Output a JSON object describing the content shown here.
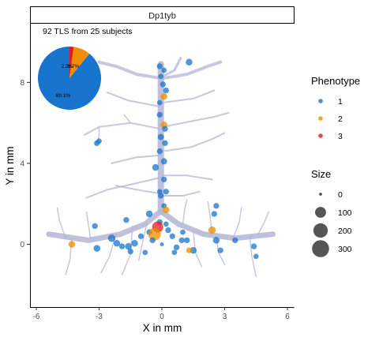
{
  "chart_data": {
    "type": "scatter",
    "facet_label": "Dp1tyb",
    "annotation": "92 TLS from 25 subjects",
    "xlabel": "X in mm",
    "ylabel": "Y in mm",
    "xlim": [
      -6.3,
      6.3
    ],
    "ylim": [
      -3.1,
      10.9
    ],
    "xticks": [
      -6,
      -3,
      0,
      3,
      6
    ],
    "yticks": [
      0,
      4,
      8
    ],
    "grid": false,
    "legend_position": "right",
    "phenotype_legend": {
      "title": "Phenotype",
      "items": [
        {
          "label": "1",
          "color": "#1874CD"
        },
        {
          "label": "2",
          "color": "#EE8E00"
        },
        {
          "label": "3",
          "color": "#E41A1C"
        }
      ]
    },
    "size_legend": {
      "title": "Size",
      "items": [
        {
          "label": "0",
          "value": 0
        },
        {
          "label": "100",
          "value": 100
        },
        {
          "label": "200",
          "value": 200
        },
        {
          "label": "300",
          "value": 300
        }
      ]
    },
    "pie": {
      "slices": [
        {
          "phenotype": "1",
          "percent": 89.1,
          "label": "89.1%",
          "color": "#1874CD"
        },
        {
          "phenotype": "2",
          "percent": 8.7,
          "label": "8.7%",
          "color": "#EE8E00"
        },
        {
          "phenotype": "3",
          "percent": 2.2,
          "label": "2.2%",
          "color": "#E41A1C"
        }
      ]
    },
    "points": [
      {
        "x": -0.1,
        "y": 8.8,
        "phenotype": "1",
        "size": 40
      },
      {
        "x": 0.1,
        "y": 8.6,
        "phenotype": "1",
        "size": 30
      },
      {
        "x": 1.3,
        "y": 9.0,
        "phenotype": "1",
        "size": 60
      },
      {
        "x": -0.05,
        "y": 8.3,
        "phenotype": "1",
        "size": 30
      },
      {
        "x": 0.05,
        "y": 7.9,
        "phenotype": "1",
        "size": 40
      },
      {
        "x": 0.2,
        "y": 7.6,
        "phenotype": "1",
        "size": 40
      },
      {
        "x": 0.1,
        "y": 7.3,
        "phenotype": "2",
        "size": 60
      },
      {
        "x": -0.1,
        "y": 7.0,
        "phenotype": "1",
        "size": 30
      },
      {
        "x": -0.1,
        "y": 6.4,
        "phenotype": "1",
        "size": 40
      },
      {
        "x": 0.1,
        "y": 5.9,
        "phenotype": "2",
        "size": 60
      },
      {
        "x": 0.15,
        "y": 5.7,
        "phenotype": "1",
        "size": 40
      },
      {
        "x": -0.05,
        "y": 5.3,
        "phenotype": "1",
        "size": 50
      },
      {
        "x": -3.1,
        "y": 5.0,
        "phenotype": "1",
        "size": 40
      },
      {
        "x": -3.0,
        "y": 5.1,
        "phenotype": "1",
        "size": 30
      },
      {
        "x": 0.15,
        "y": 5.0,
        "phenotype": "1",
        "size": 40
      },
      {
        "x": -0.1,
        "y": 4.6,
        "phenotype": "1",
        "size": 40
      },
      {
        "x": 0.1,
        "y": 4.1,
        "phenotype": "1",
        "size": 50
      },
      {
        "x": -0.3,
        "y": 3.8,
        "phenotype": "1",
        "size": 60
      },
      {
        "x": 0.1,
        "y": 3.2,
        "phenotype": "1",
        "size": 40
      },
      {
        "x": 0.2,
        "y": 2.6,
        "phenotype": "1",
        "size": 40
      },
      {
        "x": -0.1,
        "y": 2.6,
        "phenotype": "1",
        "size": 30
      },
      {
        "x": -0.05,
        "y": 2.4,
        "phenotype": "1",
        "size": 40
      },
      {
        "x": 0.1,
        "y": 1.9,
        "phenotype": "1",
        "size": 30
      },
      {
        "x": 0.2,
        "y": 1.7,
        "phenotype": "2",
        "size": 60
      },
      {
        "x": -0.6,
        "y": 1.5,
        "phenotype": "1",
        "size": 60
      },
      {
        "x": 2.6,
        "y": 1.9,
        "phenotype": "1",
        "size": 40
      },
      {
        "x": 2.5,
        "y": 1.5,
        "phenotype": "1",
        "size": 40
      },
      {
        "x": -1.7,
        "y": 1.2,
        "phenotype": "1",
        "size": 40
      },
      {
        "x": -0.1,
        "y": 1.1,
        "phenotype": "1",
        "size": 40
      },
      {
        "x": 0.2,
        "y": 1.0,
        "phenotype": "1",
        "size": 30
      },
      {
        "x": -3.2,
        "y": 0.9,
        "phenotype": "1",
        "size": 40
      },
      {
        "x": -0.2,
        "y": 0.85,
        "phenotype": "3",
        "size": 220
      },
      {
        "x": 0.3,
        "y": 0.7,
        "phenotype": "1",
        "size": 40
      },
      {
        "x": -0.6,
        "y": 0.6,
        "phenotype": "1",
        "size": 40
      },
      {
        "x": 2.4,
        "y": 0.7,
        "phenotype": "2",
        "size": 80
      },
      {
        "x": 1.0,
        "y": 0.6,
        "phenotype": "1",
        "size": 30
      },
      {
        "x": -0.35,
        "y": 0.5,
        "phenotype": "2",
        "size": 300
      },
      {
        "x": -2.4,
        "y": 0.3,
        "phenotype": "1",
        "size": 80
      },
      {
        "x": 0.5,
        "y": 0.4,
        "phenotype": "1",
        "size": 40
      },
      {
        "x": -1.0,
        "y": 0.4,
        "phenotype": "1",
        "size": 40
      },
      {
        "x": 2.6,
        "y": 0.2,
        "phenotype": "1",
        "size": 60
      },
      {
        "x": -0.45,
        "y": 0.2,
        "phenotype": "1",
        "size": 40
      },
      {
        "x": 0.95,
        "y": 0.2,
        "phenotype": "1",
        "size": 40
      },
      {
        "x": -2.15,
        "y": 0.05,
        "phenotype": "1",
        "size": 60
      },
      {
        "x": -4.3,
        "y": 0.0,
        "phenotype": "2",
        "size": 60
      },
      {
        "x": 3.5,
        "y": 0.2,
        "phenotype": "1",
        "size": 40
      },
      {
        "x": 1.2,
        "y": 0.2,
        "phenotype": "1",
        "size": 40
      },
      {
        "x": -1.3,
        "y": 0.05,
        "phenotype": "1",
        "size": 60
      },
      {
        "x": 0.0,
        "y": 0.0,
        "phenotype": "1",
        "size": 10
      },
      {
        "x": -1.6,
        "y": -0.1,
        "phenotype": "1",
        "size": 60
      },
      {
        "x": 0.7,
        "y": -0.15,
        "phenotype": "1",
        "size": 40
      },
      {
        "x": -1.9,
        "y": -0.1,
        "phenotype": "1",
        "size": 40
      },
      {
        "x": -3.1,
        "y": -0.2,
        "phenotype": "1",
        "size": 60
      },
      {
        "x": 1.5,
        "y": -0.3,
        "phenotype": "1",
        "size": 60
      },
      {
        "x": 1.3,
        "y": -0.3,
        "phenotype": "2",
        "size": 40
      },
      {
        "x": 4.4,
        "y": -0.1,
        "phenotype": "1",
        "size": 40
      },
      {
        "x": -1.5,
        "y": -0.35,
        "phenotype": "1",
        "size": 40
      },
      {
        "x": -0.8,
        "y": -0.4,
        "phenotype": "1",
        "size": 30
      },
      {
        "x": 2.8,
        "y": -0.3,
        "phenotype": "1",
        "size": 40
      },
      {
        "x": 0.6,
        "y": -0.4,
        "phenotype": "1",
        "size": 30
      },
      {
        "x": 4.5,
        "y": -0.6,
        "phenotype": "1",
        "size": 30
      }
    ]
  }
}
